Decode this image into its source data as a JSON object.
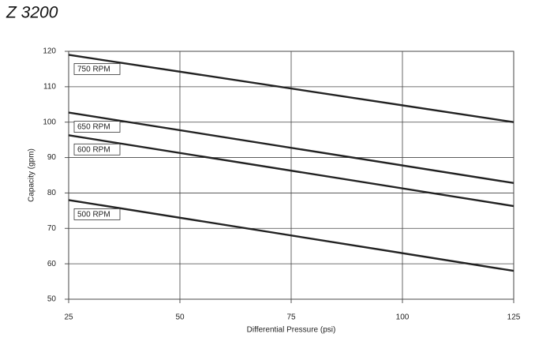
{
  "chart_data": {
    "type": "line",
    "title": "Z 3200",
    "x_label": "Differential Pressure (psi)",
    "y_label": "Capacity (gpm)",
    "x": [
      25,
      125
    ],
    "series": [
      {
        "name": "750 RPM",
        "color": "#222222",
        "values": [
          119,
          100
        ]
      },
      {
        "name": "650 RPM",
        "color": "#222222",
        "values": [
          102.7,
          82.8
        ]
      },
      {
        "name": "600 RPM",
        "color": "#222222",
        "values": [
          96.3,
          76.3
        ]
      },
      {
        "name": "500 RPM",
        "color": "#222222",
        "values": [
          78,
          58
        ]
      }
    ],
    "xlim": [
      25,
      125
    ],
    "xticks": [
      25,
      50,
      75,
      100,
      125
    ],
    "ylim": [
      50,
      120
    ],
    "yticks": [
      50,
      60,
      70,
      80,
      90,
      100,
      110,
      120
    ],
    "grid": true
  }
}
